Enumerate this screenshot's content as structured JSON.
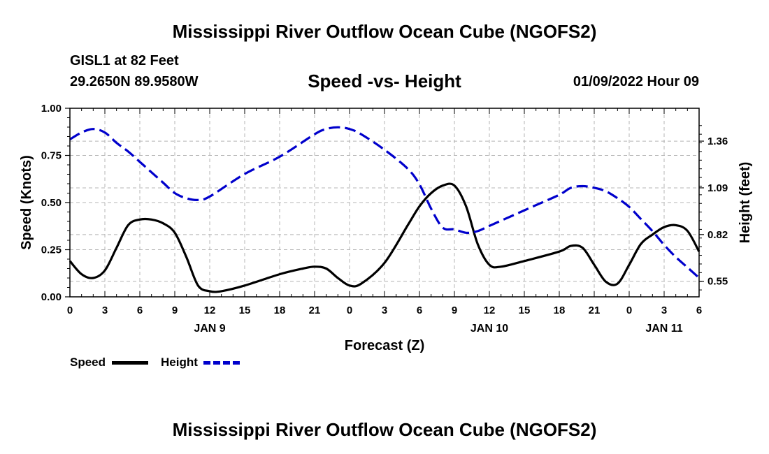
{
  "header": {
    "title": "Mississippi River Outflow Ocean Cube (NGOFS2)",
    "station": "GISL1 at 82 Feet",
    "coords": "29.2650N  89.9580W",
    "subtitle": "Speed -vs- Height",
    "datetime": "01/09/2022 Hour 09"
  },
  "footer": {
    "title": "Mississippi River Outflow Ocean Cube (NGOFS2)"
  },
  "legend": {
    "speed_label": "Speed",
    "height_label": "Height"
  },
  "colors": {
    "speed": "#000000",
    "height": "#0000cc",
    "grid": "#b4b4b4"
  },
  "chart_data": {
    "type": "line",
    "xlabel": "Forecast (Z)",
    "ylabel_left": "Speed (Knots)",
    "ylabel_right": "Height (feet)",
    "x_range_hours": [
      0,
      54
    ],
    "x_tick_hours": [
      0,
      3,
      6,
      9,
      12,
      15,
      18,
      21,
      24,
      27,
      30,
      33,
      36,
      39,
      42,
      45,
      48,
      51,
      54
    ],
    "x_tick_labels": [
      "0",
      "3",
      "6",
      "9",
      "12",
      "15",
      "18",
      "21",
      "0",
      "3",
      "6",
      "9",
      "12",
      "15",
      "18",
      "21",
      "0",
      "3",
      "6"
    ],
    "day_labels": [
      {
        "label": "JAN 9",
        "hour": 12
      },
      {
        "label": "JAN 10",
        "hour": 36
      },
      {
        "label": "JAN 11",
        "hour": 51
      }
    ],
    "ylim_left": [
      0,
      1
    ],
    "y_left_ticks": [
      0,
      0.25,
      0.5,
      0.75,
      1
    ],
    "y_left_tick_labels": [
      "0.00",
      "0.25",
      "0.50",
      "0.75",
      "1.00"
    ],
    "ylim_right": [
      0.46,
      1.55
    ],
    "y_right_ticks": [
      0.55,
      0.82,
      1.09,
      1.36
    ],
    "y_right_tick_labels": [
      "0.55",
      "0.82",
      "1.09",
      "1.36"
    ],
    "grid": true,
    "series": [
      {
        "name": "Speed",
        "axis": "left",
        "style": "solid",
        "x": [
          0,
          1,
          2,
          3,
          4,
          5,
          6,
          7,
          8,
          9,
          10,
          11,
          12,
          13,
          15,
          18,
          20,
          21,
          22,
          23,
          24,
          25,
          27,
          29,
          30,
          31,
          32,
          33,
          34,
          35,
          36,
          37,
          39,
          42,
          43,
          44,
          45,
          46,
          47,
          48,
          49,
          50,
          51,
          52,
          53,
          54
        ],
        "values": [
          0.19,
          0.12,
          0.1,
          0.14,
          0.26,
          0.38,
          0.41,
          0.41,
          0.39,
          0.34,
          0.21,
          0.06,
          0.03,
          0.03,
          0.06,
          0.12,
          0.15,
          0.16,
          0.15,
          0.1,
          0.06,
          0.07,
          0.18,
          0.38,
          0.48,
          0.55,
          0.59,
          0.59,
          0.48,
          0.28,
          0.17,
          0.16,
          0.19,
          0.24,
          0.27,
          0.26,
          0.17,
          0.08,
          0.07,
          0.17,
          0.28,
          0.33,
          0.37,
          0.38,
          0.35,
          0.24
        ]
      },
      {
        "name": "Height",
        "axis": "right",
        "style": "dashed",
        "x": [
          0,
          1,
          2,
          3,
          4,
          5,
          6,
          7,
          8,
          9,
          10,
          11,
          12,
          15,
          18,
          21,
          22,
          23,
          24,
          25,
          27,
          29,
          30,
          31,
          32,
          33,
          34,
          35,
          36,
          38,
          40,
          42,
          43,
          44,
          45,
          46,
          47,
          48,
          49,
          50,
          51,
          52,
          53,
          54
        ],
        "values": [
          1.37,
          1.41,
          1.43,
          1.41,
          1.35,
          1.3,
          1.24,
          1.18,
          1.12,
          1.06,
          1.03,
          1.02,
          1.04,
          1.17,
          1.27,
          1.4,
          1.43,
          1.44,
          1.43,
          1.4,
          1.31,
          1.2,
          1.11,
          0.97,
          0.86,
          0.85,
          0.83,
          0.84,
          0.87,
          0.93,
          0.99,
          1.05,
          1.09,
          1.1,
          1.09,
          1.07,
          1.03,
          0.98,
          0.91,
          0.84,
          0.76,
          0.69,
          0.63,
          0.57
        ]
      }
    ]
  }
}
